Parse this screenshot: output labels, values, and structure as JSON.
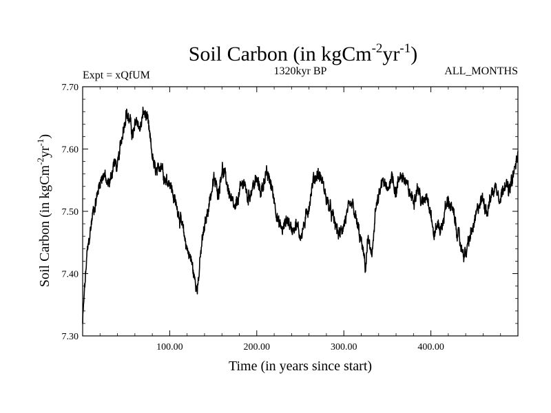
{
  "chart_data": {
    "type": "line",
    "title_main": "Soil Carbon (in kgCm",
    "title_exp1": "-2",
    "title_mid": "yr",
    "title_exp2": "-1",
    "title_close": ")",
    "subtitle_left": "Expt = xQfUM",
    "subtitle_center": "1320kyr BP",
    "subtitle_right": "ALL_MONTHS",
    "xlabel": "Time (in years since start)",
    "ylabel_main": "Soil Carbon (in kgCm",
    "ylabel_exp1": "-2",
    "ylabel_mid": "yr",
    "ylabel_exp2": "-1",
    "ylabel_close": ")",
    "xlim": [
      0,
      500
    ],
    "ylim": [
      7.3,
      7.7
    ],
    "x_ticks": [
      100,
      200,
      300,
      400
    ],
    "x_tick_labels": [
      "100.00",
      "200.00",
      "300.00",
      "400.00"
    ],
    "y_ticks": [
      7.3,
      7.4,
      7.5,
      7.6,
      7.7
    ],
    "y_tick_labels": [
      "7.30",
      "7.40",
      "7.50",
      "7.60",
      "7.70"
    ],
    "line_color": "#000000",
    "series": [
      {
        "name": "Soil Carbon",
        "x": [
          0,
          2,
          5,
          8,
          12,
          16,
          20,
          25,
          28,
          32,
          36,
          40,
          45,
          50,
          55,
          58,
          62,
          66,
          70,
          74,
          78,
          82,
          86,
          90,
          95,
          100,
          105,
          110,
          115,
          120,
          125,
          130,
          133,
          137,
          141,
          146,
          151,
          156,
          160,
          165,
          170,
          175,
          180,
          185,
          190,
          195,
          200,
          205,
          210,
          215,
          220,
          225,
          230,
          235,
          240,
          245,
          250,
          255,
          260,
          265,
          270,
          275,
          280,
          285,
          290,
          295,
          300,
          305,
          310,
          315,
          320,
          325,
          328,
          332,
          336,
          340,
          345,
          350,
          355,
          360,
          365,
          370,
          375,
          380,
          385,
          390,
          395,
          400,
          403,
          408,
          412,
          416,
          420,
          425,
          430,
          435,
          440,
          445,
          450,
          455,
          460,
          465,
          470,
          475,
          480,
          485,
          490,
          495,
          500
        ],
        "y": [
          7.32,
          7.37,
          7.43,
          7.46,
          7.5,
          7.52,
          7.55,
          7.56,
          7.54,
          7.55,
          7.58,
          7.57,
          7.62,
          7.66,
          7.64,
          7.62,
          7.65,
          7.63,
          7.66,
          7.65,
          7.61,
          7.57,
          7.56,
          7.58,
          7.55,
          7.55,
          7.52,
          7.5,
          7.47,
          7.44,
          7.42,
          7.38,
          7.39,
          7.45,
          7.48,
          7.52,
          7.55,
          7.53,
          7.57,
          7.55,
          7.52,
          7.5,
          7.53,
          7.55,
          7.52,
          7.54,
          7.55,
          7.53,
          7.56,
          7.55,
          7.52,
          7.48,
          7.47,
          7.49,
          7.47,
          7.48,
          7.46,
          7.48,
          7.51,
          7.55,
          7.56,
          7.55,
          7.52,
          7.5,
          7.48,
          7.46,
          7.48,
          7.5,
          7.51,
          7.48,
          7.45,
          7.41,
          7.46,
          7.42,
          7.5,
          7.52,
          7.55,
          7.53,
          7.56,
          7.53,
          7.56,
          7.55,
          7.53,
          7.52,
          7.54,
          7.51,
          7.53,
          7.5,
          7.46,
          7.48,
          7.47,
          7.5,
          7.52,
          7.5,
          7.47,
          7.44,
          7.43,
          7.46,
          7.48,
          7.51,
          7.52,
          7.5,
          7.53,
          7.54,
          7.52,
          7.55,
          7.53,
          7.56,
          7.59
        ]
      }
    ]
  }
}
